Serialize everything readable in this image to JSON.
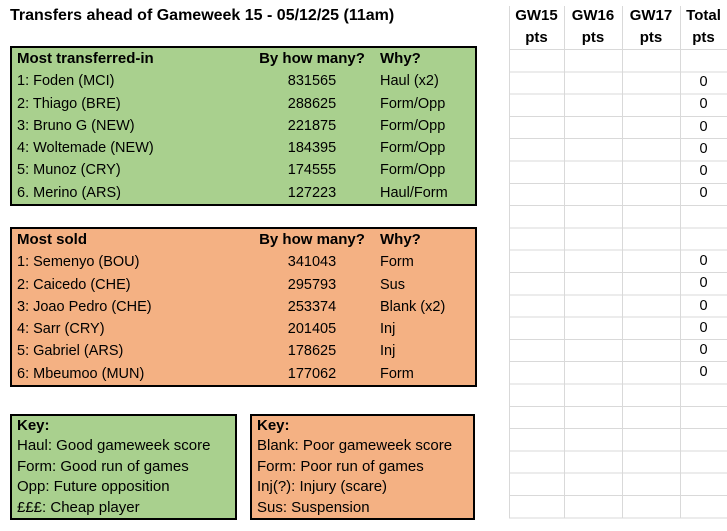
{
  "title": "Transfers ahead of Gameweek 15 - 05/12/25 (11am)",
  "points_columns": [
    {
      "label": "GW15",
      "sub": "pts"
    },
    {
      "label": "GW16",
      "sub": "pts"
    },
    {
      "label": "GW17",
      "sub": "pts"
    },
    {
      "label": "Total",
      "sub": "pts"
    }
  ],
  "transfers_in": {
    "col_player": "Most transferred-in",
    "col_count": "By how many?",
    "col_why": "Why?",
    "rows": [
      {
        "player": "1: Foden (MCI)",
        "count": "831565",
        "why": "Haul (x2)",
        "total": "0"
      },
      {
        "player": "2: Thiago (BRE)",
        "count": "288625",
        "why": "Form/Opp",
        "total": "0"
      },
      {
        "player": "3: Bruno G (NEW)",
        "count": "221875",
        "why": "Form/Opp",
        "total": "0"
      },
      {
        "player": "4: Woltemade (NEW)",
        "count": "184395",
        "why": "Form/Opp",
        "total": "0"
      },
      {
        "player": "5: Munoz (CRY)",
        "count": "174555",
        "why": "Form/Opp",
        "total": "0"
      },
      {
        "player": "6. Merino (ARS)",
        "count": "127223",
        "why": "Haul/Form",
        "total": "0"
      }
    ]
  },
  "transfers_out": {
    "col_player": "Most sold",
    "col_count": "By how many?",
    "col_why": "Why?",
    "rows": [
      {
        "player": "1: Semenyo (BOU)",
        "count": "341043",
        "why": "Form",
        "total": "0"
      },
      {
        "player": "2: Caicedo (CHE)",
        "count": "295793",
        "why": "Sus",
        "total": "0"
      },
      {
        "player": "3: Joao Pedro (CHE)",
        "count": "253374",
        "why": "Blank (x2)",
        "total": "0"
      },
      {
        "player": "4: Sarr (CRY)",
        "count": "201405",
        "why": "Inj",
        "total": "0"
      },
      {
        "player": "5: Gabriel (ARS)",
        "count": "178625",
        "why": "Inj",
        "total": "0"
      },
      {
        "player": "6: Mbeumoo (MUN)",
        "count": "177062",
        "why": "Form",
        "total": "0"
      }
    ]
  },
  "key_in": {
    "title": "Key:",
    "items": [
      "Haul: Good gameweek score",
      "Form: Good run of games",
      "Opp: Future opposition",
      "£££: Cheap player"
    ]
  },
  "key_out": {
    "title": "Key:",
    "items": [
      "Blank: Poor gameweek score",
      "Form: Poor run of games",
      "Inj(?): Injury (scare)",
      "Sus: Suspension"
    ]
  },
  "colors": {
    "transfers_in_fill": "#a9d08e",
    "transfers_out_fill": "#f4b183",
    "gridline": "#d9d9d9",
    "table_border": "#000000"
  }
}
